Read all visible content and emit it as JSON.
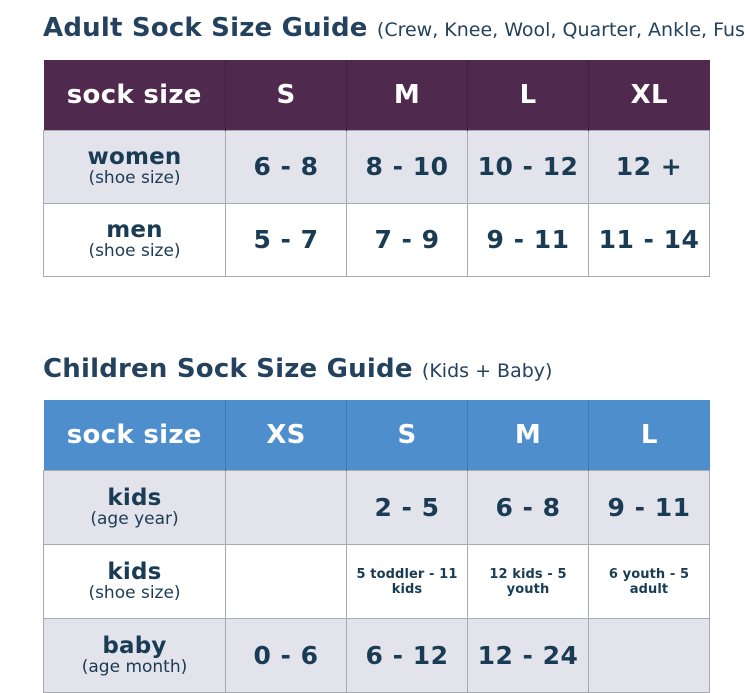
{
  "adult": {
    "title": "Adult Sock Size Guide",
    "subtitle": "(Crew, Knee, Wool, Quarter, Ankle, Fusion)",
    "columns": [
      "sock size",
      "S",
      "M",
      "L",
      "XL"
    ],
    "rows": [
      {
        "label": "women",
        "sublabel": "(shoe size)",
        "values": [
          "6 - 8",
          "8 - 10",
          "10 - 12",
          "12 +"
        ]
      },
      {
        "label": "men",
        "sublabel": "(shoe size)",
        "values": [
          "5 - 7",
          "7 - 9",
          "9 - 11",
          "11 - 14"
        ]
      }
    ]
  },
  "children": {
    "title": "Children Sock Size Guide",
    "subtitle": "(Kids + Baby)",
    "columns": [
      "sock size",
      "XS",
      "S",
      "M",
      "L"
    ],
    "rows": [
      {
        "label": "kids",
        "sublabel": "(age year)",
        "values": [
          "",
          "2 - 5",
          "6 - 8",
          "9 - 11"
        ]
      },
      {
        "label": "kids",
        "sublabel": "(shoe size)",
        "values": [
          "",
          "5 toddler - 11 kids",
          "12 kids - 5 youth",
          "6 youth - 5 adult"
        ]
      },
      {
        "label": "baby",
        "sublabel": "(age month)",
        "values": [
          "0 - 6",
          "6 - 12",
          "12 - 24",
          ""
        ]
      }
    ]
  },
  "colors": {
    "title_text": "#24425e",
    "table_text": "#1a3b54",
    "adult_header_bg": "#4f2a4e",
    "adult_header_divider": "#3f2140",
    "children_header_bg": "#4e8ecd",
    "children_header_divider": "#3d7ab8",
    "alt_row_bg": "#e3e3ec",
    "grid_line": "#a9a9b2",
    "header_text": "#ffffff",
    "page_bg": "#ffffff"
  }
}
